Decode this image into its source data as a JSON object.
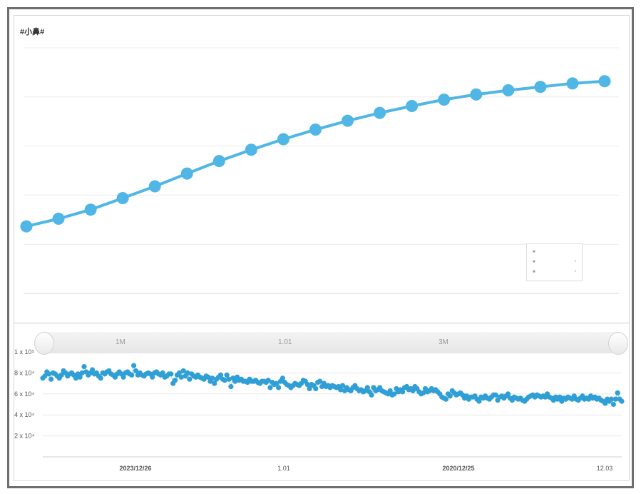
{
  "top_chart": {
    "title": "#小鼻#",
    "color": "#4fb6e6"
  },
  "scrollbar": {
    "labels": [
      "1M",
      "1.01",
      "3M"
    ]
  },
  "bottom_chart": {
    "color": "#2f9fd6",
    "y_tick_labels": [
      "1 x 10⁵",
      "8 x 10⁴",
      "6 x 10⁴",
      "4 x 10⁴",
      "2 x 10⁴"
    ],
    "x_tick_labels": [
      "2023/12/26",
      "1.01",
      "2020/12/25",
      "12.03"
    ]
  },
  "chart_data": [
    {
      "type": "line",
      "title": "#小鼻#",
      "xlabel": "",
      "ylabel": "",
      "ylim": [
        0,
        100
      ],
      "y_ticks": [
        0,
        20,
        40,
        60,
        80,
        100
      ],
      "grid": true,
      "legend": "bottom-right",
      "series": [
        {
          "values": [
            27.3,
            30.4,
            34.1,
            38.8,
            43.6,
            48.8,
            53.9,
            58.5,
            62.8,
            66.7,
            70.3,
            73.5,
            76.3,
            78.9,
            81.0,
            82.7,
            84.1,
            85.5,
            86.4
          ]
        }
      ]
    },
    {
      "type": "scatter",
      "ylim": [
        0,
        100000
      ],
      "y_ticks": [
        20000,
        40000,
        60000,
        80000,
        100000
      ],
      "grid": true,
      "series": [
        {
          "values": [
            75000,
            77000,
            81000,
            79000,
            74000,
            80000,
            79000,
            77000,
            75000,
            78000,
            82000,
            80000,
            77000,
            79000,
            80000,
            78000,
            75000,
            79000,
            76000,
            80000,
            86000,
            81000,
            78000,
            80000,
            83000,
            79000,
            80000,
            77000,
            75000,
            80000,
            79000,
            81000,
            82000,
            79000,
            78000,
            76000,
            79000,
            81000,
            79000,
            76000,
            80000,
            81000,
            79000,
            78000,
            87000,
            82000,
            78000,
            80000,
            78000,
            77000,
            79000,
            80000,
            79000,
            76000,
            80000,
            81000,
            79000,
            78000,
            80000,
            76000,
            77000,
            79000,
            79000,
            70000,
            73000,
            78000,
            80000,
            76000,
            82000,
            77000,
            80000,
            74000,
            79000,
            77000,
            76000,
            78000,
            76000,
            75000,
            74000,
            77000,
            76000,
            72000,
            75000,
            70000,
            74000,
            76000,
            78000,
            74000,
            73000,
            78000,
            74000,
            67000,
            75000,
            72000,
            76000,
            73000,
            74000,
            72000,
            72000,
            71000,
            74000,
            72000,
            72000,
            73000,
            71000,
            70000,
            72000,
            72000,
            71000,
            73000,
            66000,
            71000,
            69000,
            70000,
            66000,
            72000,
            75000,
            71000,
            69000,
            68000,
            66000,
            68000,
            70000,
            69000,
            68000,
            70000,
            73000,
            72000,
            69000,
            65000,
            69000,
            68000,
            65000,
            71000,
            72000,
            67000,
            70000,
            67000,
            68000,
            66000,
            68000,
            67000,
            66000,
            67000,
            64000,
            68000,
            63000,
            66000,
            64000,
            63000,
            66000,
            68000,
            65000,
            63000,
            64000,
            62000,
            63000,
            66000,
            62000,
            59000,
            66000,
            63000,
            64000,
            66000,
            63000,
            62000,
            61000,
            60000,
            63000,
            59000,
            60000,
            65000,
            62000,
            64000,
            62000,
            66000,
            67000,
            64000,
            65000,
            63000,
            67000,
            65000,
            62000,
            60000,
            61000,
            65000,
            62000,
            63000,
            65000,
            63000,
            64000,
            62000,
            60000,
            57000,
            56000,
            55000,
            60000,
            58000,
            63000,
            61000,
            59000,
            60000,
            61000,
            59000,
            56000,
            58000,
            55000,
            57000,
            57000,
            58000,
            55000,
            53000,
            57000,
            56000,
            58000,
            56000,
            55000,
            57000,
            59000,
            59000,
            54000,
            57000,
            58000,
            56000,
            58000,
            60000,
            56000,
            54000,
            57000,
            56000,
            55000,
            56000,
            54000,
            53000,
            55000,
            57000,
            58000,
            59000,
            57000,
            59000,
            58000,
            57000,
            58000,
            57000,
            60000,
            57000,
            56000,
            54000,
            57000,
            55000,
            57000,
            53000,
            56000,
            55000,
            57000,
            56000,
            55000,
            58000,
            55000,
            54000,
            56000,
            58000,
            55000,
            56000,
            55000,
            58000,
            56000,
            57000,
            55000,
            56000,
            54000,
            53000,
            51000,
            55000,
            53000,
            55000,
            50000,
            55000,
            61000,
            55000,
            53000
          ]
        }
      ]
    }
  ]
}
